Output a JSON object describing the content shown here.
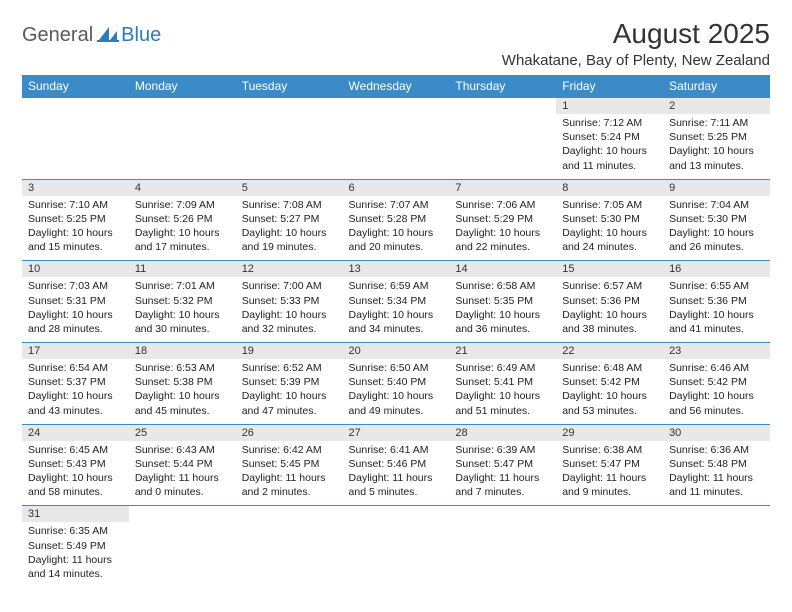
{
  "logo": {
    "part1": "General",
    "part2": "Blue",
    "icon_color": "#2b7bbd"
  },
  "title": "August 2025",
  "location": "Whakatane, Bay of Plenty, New Zealand",
  "header_bg": "#3b8bc8",
  "daynum_bg": "#e8e8e8",
  "border_color": "#3b8bc8",
  "weekdays": [
    "Sunday",
    "Monday",
    "Tuesday",
    "Wednesday",
    "Thursday",
    "Friday",
    "Saturday"
  ],
  "weeks": [
    [
      null,
      null,
      null,
      null,
      null,
      {
        "n": "1",
        "sr": "7:12 AM",
        "ss": "5:24 PM",
        "dl": "10 hours and 11 minutes."
      },
      {
        "n": "2",
        "sr": "7:11 AM",
        "ss": "5:25 PM",
        "dl": "10 hours and 13 minutes."
      }
    ],
    [
      {
        "n": "3",
        "sr": "7:10 AM",
        "ss": "5:25 PM",
        "dl": "10 hours and 15 minutes."
      },
      {
        "n": "4",
        "sr": "7:09 AM",
        "ss": "5:26 PM",
        "dl": "10 hours and 17 minutes."
      },
      {
        "n": "5",
        "sr": "7:08 AM",
        "ss": "5:27 PM",
        "dl": "10 hours and 19 minutes."
      },
      {
        "n": "6",
        "sr": "7:07 AM",
        "ss": "5:28 PM",
        "dl": "10 hours and 20 minutes."
      },
      {
        "n": "7",
        "sr": "7:06 AM",
        "ss": "5:29 PM",
        "dl": "10 hours and 22 minutes."
      },
      {
        "n": "8",
        "sr": "7:05 AM",
        "ss": "5:30 PM",
        "dl": "10 hours and 24 minutes."
      },
      {
        "n": "9",
        "sr": "7:04 AM",
        "ss": "5:30 PM",
        "dl": "10 hours and 26 minutes."
      }
    ],
    [
      {
        "n": "10",
        "sr": "7:03 AM",
        "ss": "5:31 PM",
        "dl": "10 hours and 28 minutes."
      },
      {
        "n": "11",
        "sr": "7:01 AM",
        "ss": "5:32 PM",
        "dl": "10 hours and 30 minutes."
      },
      {
        "n": "12",
        "sr": "7:00 AM",
        "ss": "5:33 PM",
        "dl": "10 hours and 32 minutes."
      },
      {
        "n": "13",
        "sr": "6:59 AM",
        "ss": "5:34 PM",
        "dl": "10 hours and 34 minutes."
      },
      {
        "n": "14",
        "sr": "6:58 AM",
        "ss": "5:35 PM",
        "dl": "10 hours and 36 minutes."
      },
      {
        "n": "15",
        "sr": "6:57 AM",
        "ss": "5:36 PM",
        "dl": "10 hours and 38 minutes."
      },
      {
        "n": "16",
        "sr": "6:55 AM",
        "ss": "5:36 PM",
        "dl": "10 hours and 41 minutes."
      }
    ],
    [
      {
        "n": "17",
        "sr": "6:54 AM",
        "ss": "5:37 PM",
        "dl": "10 hours and 43 minutes."
      },
      {
        "n": "18",
        "sr": "6:53 AM",
        "ss": "5:38 PM",
        "dl": "10 hours and 45 minutes."
      },
      {
        "n": "19",
        "sr": "6:52 AM",
        "ss": "5:39 PM",
        "dl": "10 hours and 47 minutes."
      },
      {
        "n": "20",
        "sr": "6:50 AM",
        "ss": "5:40 PM",
        "dl": "10 hours and 49 minutes."
      },
      {
        "n": "21",
        "sr": "6:49 AM",
        "ss": "5:41 PM",
        "dl": "10 hours and 51 minutes."
      },
      {
        "n": "22",
        "sr": "6:48 AM",
        "ss": "5:42 PM",
        "dl": "10 hours and 53 minutes."
      },
      {
        "n": "23",
        "sr": "6:46 AM",
        "ss": "5:42 PM",
        "dl": "10 hours and 56 minutes."
      }
    ],
    [
      {
        "n": "24",
        "sr": "6:45 AM",
        "ss": "5:43 PM",
        "dl": "10 hours and 58 minutes."
      },
      {
        "n": "25",
        "sr": "6:43 AM",
        "ss": "5:44 PM",
        "dl": "11 hours and 0 minutes."
      },
      {
        "n": "26",
        "sr": "6:42 AM",
        "ss": "5:45 PM",
        "dl": "11 hours and 2 minutes."
      },
      {
        "n": "27",
        "sr": "6:41 AM",
        "ss": "5:46 PM",
        "dl": "11 hours and 5 minutes."
      },
      {
        "n": "28",
        "sr": "6:39 AM",
        "ss": "5:47 PM",
        "dl": "11 hours and 7 minutes."
      },
      {
        "n": "29",
        "sr": "6:38 AM",
        "ss": "5:47 PM",
        "dl": "11 hours and 9 minutes."
      },
      {
        "n": "30",
        "sr": "6:36 AM",
        "ss": "5:48 PM",
        "dl": "11 hours and 11 minutes."
      }
    ],
    [
      {
        "n": "31",
        "sr": "6:35 AM",
        "ss": "5:49 PM",
        "dl": "11 hours and 14 minutes."
      },
      null,
      null,
      null,
      null,
      null,
      null
    ]
  ],
  "labels": {
    "sunrise": "Sunrise: ",
    "sunset": "Sunset: ",
    "daylight": "Daylight: "
  }
}
